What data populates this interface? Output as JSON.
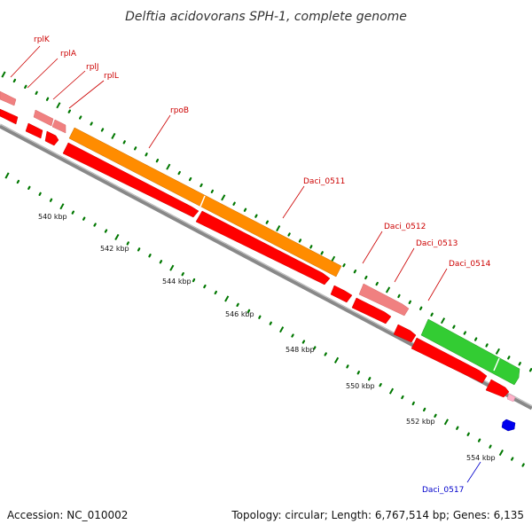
{
  "title": "Delftia acidovorans SPH-1, complete genome",
  "footer": {
    "accession": "Accession: NC_010002",
    "summary": "Topology: circular; Length: 6,767,514 bp; Genes: 6,135"
  },
  "scale_labels": [
    "540 kbp",
    "542 kbp",
    "544 kbp",
    "546 kbp",
    "548 kbp",
    "550 kbp",
    "552 kbp",
    "554 kbp"
  ],
  "gene_labels": [
    {
      "text": "rplK",
      "color": "#cc0000"
    },
    {
      "text": "rplA",
      "color": "#cc0000"
    },
    {
      "text": "rplJ",
      "color": "#cc0000"
    },
    {
      "text": "rplL",
      "color": "#cc0000"
    },
    {
      "text": "rpoB",
      "color": "#cc0000"
    },
    {
      "text": "Daci_0511",
      "color": "#cc0000"
    },
    {
      "text": "Daci_0512",
      "color": "#cc0000"
    },
    {
      "text": "Daci_0513",
      "color": "#cc0000"
    },
    {
      "text": "Daci_0514",
      "color": "#cc0000"
    },
    {
      "text": "Daci_0517",
      "color": "#0000cc"
    }
  ],
  "colors": {
    "cds": "#ff0000",
    "gene_light": "#f08080",
    "rpoB_gene": "#ff8c00",
    "daci_0514_gene": "#33cc33",
    "daci_0517": "#0000ee",
    "small_pink": "#ffb0c8",
    "tick": "#007700",
    "backbone": "#888888"
  }
}
